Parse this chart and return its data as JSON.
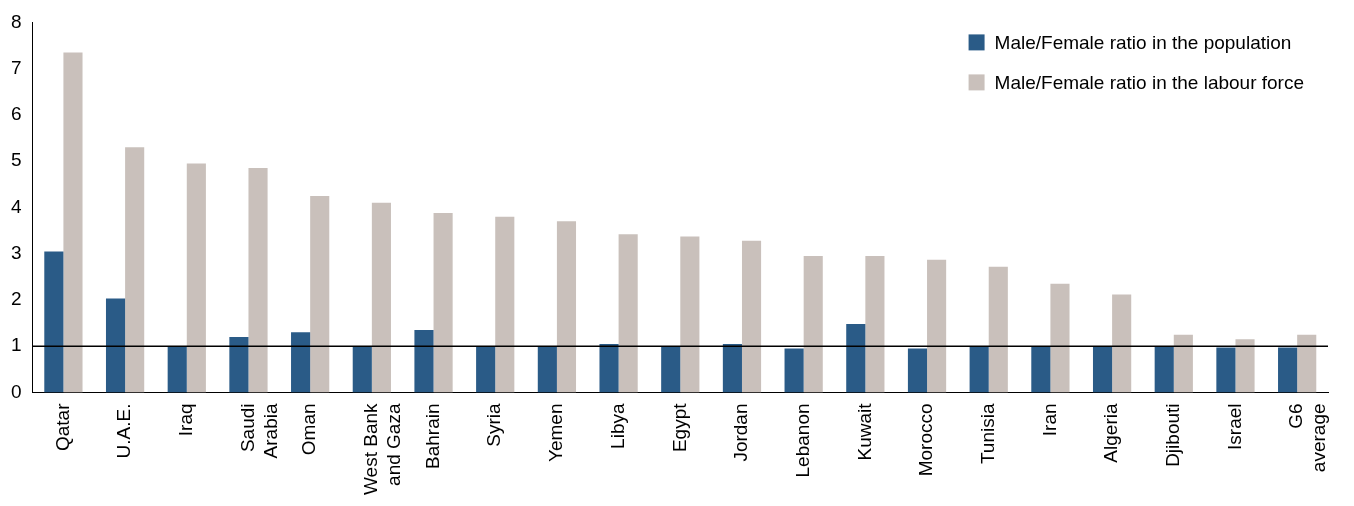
{
  "chart_data": {
    "type": "bar",
    "categories": [
      "Qatar",
      "U.A.E.",
      "Iraq",
      "Saudi Arabia",
      "Oman",
      "West Bank and Gaza",
      "Bahrain",
      "Syria",
      "Yemen",
      "Libya",
      "Egypt",
      "Jordan",
      "Lebanon",
      "Kuwait",
      "Morocco",
      "Tunisia",
      "Iran",
      "Algeria",
      "Djibouti",
      "Israel",
      "G6 average"
    ],
    "series": [
      {
        "name": "Male/Female ratio in the population",
        "color": "#2a5b87",
        "values": [
          3.05,
          2.03,
          1.0,
          1.2,
          1.3,
          1.0,
          1.35,
          1.0,
          1.0,
          1.05,
          1.0,
          1.05,
          0.95,
          1.48,
          0.95,
          1.0,
          1.0,
          1.0,
          1.0,
          0.97,
          0.97
        ]
      },
      {
        "name": "Male/Female ratio in the labour force",
        "color": "#c9c0bb",
        "values": [
          7.35,
          5.3,
          4.95,
          4.85,
          4.25,
          4.1,
          3.88,
          3.8,
          3.7,
          3.42,
          3.37,
          3.28,
          2.95,
          2.95,
          2.87,
          2.72,
          2.35,
          2.12,
          1.25,
          1.15,
          1.25
        ]
      }
    ],
    "ylim": [
      0,
      8
    ],
    "yticks": [
      0,
      1,
      2,
      3,
      4,
      5,
      6,
      7,
      8
    ],
    "ref_lines": [
      {
        "axis": "y",
        "value": 1,
        "color": "#000000"
      }
    ],
    "grid": false,
    "legend": "top right"
  }
}
